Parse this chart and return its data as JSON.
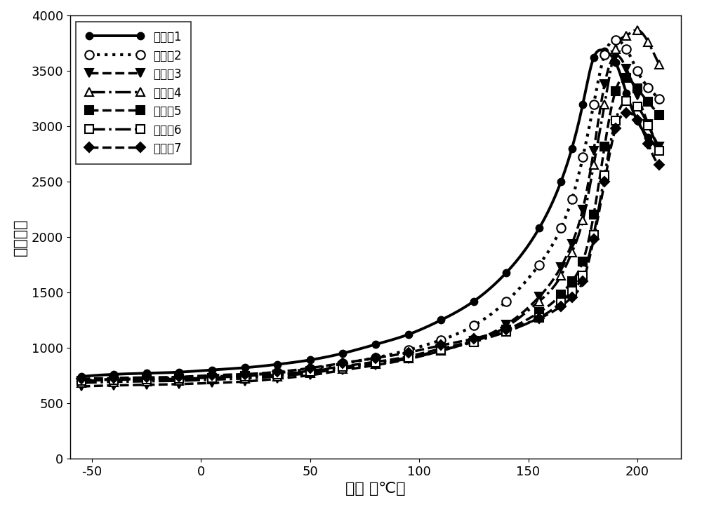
{
  "title": "",
  "xlabel": "温度 （℃）",
  "ylabel": "介电常数",
  "xlim": [
    -60,
    220
  ],
  "ylim": [
    0,
    4000
  ],
  "xticks": [
    -50,
    0,
    50,
    100,
    150,
    200
  ],
  "yticks": [
    0,
    500,
    1000,
    1500,
    2000,
    2500,
    3000,
    3500,
    4000
  ],
  "series": [
    {
      "label": "实施例1",
      "linestyle": "-",
      "marker": "o",
      "markerfacecolor": "black",
      "markersize": 7,
      "linewidth": 2.8,
      "color": "black",
      "x": [
        -55,
        -40,
        -25,
        -10,
        5,
        20,
        35,
        50,
        65,
        80,
        95,
        110,
        125,
        140,
        155,
        165,
        170,
        175,
        180,
        185,
        190,
        195,
        200,
        205,
        210
      ],
      "y": [
        740,
        760,
        770,
        780,
        800,
        820,
        850,
        890,
        950,
        1030,
        1120,
        1250,
        1420,
        1680,
        2080,
        2500,
        2800,
        3200,
        3620,
        3680,
        3580,
        3300,
        3050,
        2900,
        2780
      ]
    },
    {
      "label": "实施例2",
      "linestyle": ":",
      "marker": "o",
      "markerfacecolor": "white",
      "markersize": 9,
      "linewidth": 3.0,
      "color": "black",
      "x": [
        -55,
        -40,
        -25,
        -10,
        5,
        20,
        35,
        50,
        65,
        80,
        95,
        110,
        125,
        140,
        155,
        165,
        170,
        175,
        180,
        185,
        190,
        195,
        200,
        205,
        210
      ],
      "y": [
        700,
        715,
        720,
        728,
        738,
        752,
        775,
        808,
        858,
        910,
        980,
        1070,
        1200,
        1420,
        1750,
        2080,
        2340,
        2720,
        3200,
        3650,
        3780,
        3700,
        3500,
        3350,
        3250
      ]
    },
    {
      "label": "实施例3",
      "linestyle": "--",
      "marker": "v",
      "markerfacecolor": "black",
      "markersize": 8,
      "linewidth": 2.5,
      "color": "black",
      "x": [
        -55,
        -40,
        -25,
        -10,
        5,
        20,
        35,
        50,
        65,
        80,
        95,
        110,
        125,
        140,
        155,
        165,
        170,
        175,
        180,
        185,
        190,
        195,
        200,
        205,
        210
      ],
      "y": [
        650,
        660,
        665,
        672,
        682,
        695,
        720,
        752,
        797,
        843,
        897,
        972,
        1062,
        1210,
        1460,
        1730,
        1940,
        2250,
        2780,
        3380,
        3640,
        3520,
        3280,
        3020,
        2820
      ]
    },
    {
      "label": "实施例4",
      "linestyle": "-.",
      "marker": "^",
      "markerfacecolor": "white",
      "markersize": 9,
      "linewidth": 2.5,
      "color": "black",
      "x": [
        -55,
        -40,
        -25,
        -10,
        5,
        20,
        35,
        50,
        65,
        80,
        95,
        110,
        125,
        140,
        155,
        165,
        170,
        175,
        180,
        185,
        190,
        195,
        200,
        205,
        210
      ],
      "y": [
        682,
        692,
        697,
        702,
        712,
        722,
        742,
        772,
        812,
        852,
        902,
        972,
        1062,
        1190,
        1420,
        1650,
        1860,
        2150,
        2650,
        3200,
        3700,
        3820,
        3870,
        3760,
        3560
      ]
    },
    {
      "label": "实施例5",
      "linestyle": "--",
      "marker": "s",
      "markerfacecolor": "black",
      "markersize": 8,
      "linewidth": 2.5,
      "color": "black",
      "x": [
        -55,
        -40,
        -25,
        -10,
        5,
        20,
        35,
        50,
        65,
        80,
        95,
        110,
        125,
        140,
        155,
        165,
        170,
        175,
        180,
        185,
        190,
        195,
        200,
        205,
        210
      ],
      "y": [
        700,
        710,
        715,
        722,
        730,
        745,
        762,
        792,
        832,
        872,
        922,
        992,
        1062,
        1162,
        1320,
        1480,
        1600,
        1780,
        2200,
        2820,
        3320,
        3440,
        3340,
        3220,
        3100
      ]
    },
    {
      "label": "实施例6",
      "linestyle": "-.",
      "marker": "s",
      "markerfacecolor": "white",
      "markersize": 8,
      "linewidth": 2.5,
      "color": "black",
      "x": [
        -55,
        -40,
        -25,
        -10,
        5,
        20,
        35,
        50,
        65,
        80,
        95,
        110,
        125,
        140,
        155,
        165,
        170,
        175,
        180,
        185,
        190,
        195,
        200,
        205,
        210
      ],
      "y": [
        700,
        710,
        715,
        720,
        730,
        740,
        757,
        787,
        827,
        867,
        912,
        978,
        1052,
        1145,
        1272,
        1410,
        1510,
        1650,
        2020,
        2560,
        3050,
        3230,
        3180,
        3010,
        2780
      ]
    },
    {
      "label": "实施例7",
      "linestyle": "--",
      "marker": "D",
      "markerfacecolor": "black",
      "markersize": 7,
      "linewidth": 2.5,
      "color": "black",
      "x": [
        -55,
        -40,
        -25,
        -10,
        5,
        20,
        35,
        50,
        65,
        80,
        95,
        110,
        125,
        140,
        155,
        165,
        170,
        175,
        180,
        185,
        190,
        195,
        200,
        205,
        210
      ],
      "y": [
        720,
        727,
        732,
        737,
        752,
        762,
        782,
        817,
        862,
        907,
        957,
        1022,
        1082,
        1165,
        1265,
        1375,
        1455,
        1600,
        1980,
        2500,
        2980,
        3120,
        3060,
        2840,
        2650
      ]
    }
  ],
  "legend_loc": "upper left",
  "legend_fontsize": 12,
  "tick_fontsize": 13,
  "label_fontsize": 16,
  "background_color": "#ffffff"
}
